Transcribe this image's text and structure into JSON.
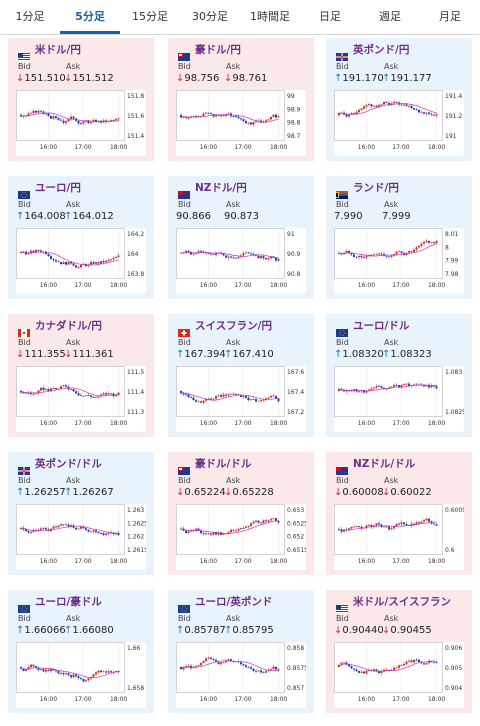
{
  "tabs": [
    {
      "label": "1分足",
      "active": false
    },
    {
      "label": "5分足",
      "active": true
    },
    {
      "label": "15分足",
      "active": false
    },
    {
      "label": "30分足",
      "active": false
    },
    {
      "label": "1時間足",
      "active": false
    },
    {
      "label": "日足",
      "active": false
    },
    {
      "label": "週足",
      "active": false
    },
    {
      "label": "月足",
      "active": false
    }
  ],
  "labels": {
    "bid": "Bid",
    "ask": "Ask"
  },
  "colors": {
    "down_bg": "#fbe9ea",
    "up_bg": "#e8f3fb",
    "title": "#6d2d8a",
    "down": "#d52b2b",
    "up": "#1f73c8",
    "bull": "#d52b2b",
    "bear": "#1f3fa8",
    "ma": "#c03ac0",
    "tab_active": "#1a5fa8"
  },
  "cards": [
    {
      "title": "米ドル/円",
      "flag": "us-flag",
      "dir": "down",
      "bid": "151.510",
      "ask": "151.512",
      "yticks": [
        "151.8",
        "151.6",
        "151.4"
      ],
      "xticks": [
        "16:00",
        "17:00",
        "18:00"
      ]
    },
    {
      "title": "豪ドル/円",
      "flag": "au-flag",
      "dir": "down",
      "bid": "98.756",
      "ask": "98.761",
      "yticks": [
        "99",
        "98.9",
        "98.8",
        "98.7"
      ],
      "xticks": [
        "16:00",
        "17:00",
        "18:00"
      ]
    },
    {
      "title": "英ポンド/円",
      "flag": "uk-flag",
      "dir": "up",
      "bid": "191.170",
      "ask": "191.177",
      "yticks": [
        "191.4",
        "191.2",
        "191"
      ],
      "xticks": [
        "16:00",
        "17:00",
        "18:00"
      ]
    },
    {
      "title": "ユーロ/円",
      "flag": "eu-flag",
      "dir": "up",
      "bid": "164.008",
      "ask": "164.012",
      "yticks": [
        "164.2",
        "164",
        "163.8"
      ],
      "xticks": [
        "16:00",
        "17:00",
        "18:00"
      ]
    },
    {
      "title": "NZドル/円",
      "flag": "nz-flag",
      "dir": "none",
      "bid": "90.866",
      "ask": "90.873",
      "yticks": [
        "91",
        "90.9",
        "90.8"
      ],
      "xticks": [
        "16:00",
        "17:00",
        "18:00"
      ]
    },
    {
      "title": "ランド/円",
      "flag": "za-flag",
      "dir": "none",
      "bid": "7.990",
      "ask": "7.999",
      "yticks": [
        "8.01",
        "8",
        "7.99",
        "7.98"
      ],
      "xticks": [
        "16:00",
        "17:00",
        "18:00"
      ]
    },
    {
      "title": "カナダドル/円",
      "flag": "ca-flag",
      "dir": "down",
      "bid": "111.355",
      "ask": "111.361",
      "yticks": [
        "111.5",
        "111.4",
        "111.3"
      ],
      "xticks": [
        "16:00",
        "17:00",
        "18:00"
      ]
    },
    {
      "title": "スイスフラン/円",
      "flag": "ch-flag",
      "dir": "up",
      "bid": "167.394",
      "ask": "167.410",
      "yticks": [
        "167.6",
        "167.4",
        "167.2"
      ],
      "xticks": [
        "16:00",
        "17:00",
        "18:00"
      ]
    },
    {
      "title": "ユーロ/ドル",
      "flag": "eu-us-flag",
      "dir": "up",
      "bid": "1.08320",
      "ask": "1.08323",
      "yticks": [
        "1.083",
        "1.0825"
      ],
      "xticks": [
        "16:00",
        "17:00",
        "18:00"
      ]
    },
    {
      "title": "英ポンド/ドル",
      "flag": "uk-us-flag",
      "dir": "up",
      "bid": "1.26257",
      "ask": "1.26267",
      "yticks": [
        "1.263",
        "1.2625",
        "1.262",
        "1.2615"
      ],
      "xticks": [
        "16:00",
        "17:00",
        "18:00"
      ]
    },
    {
      "title": "豪ドル/ドル",
      "flag": "au-us-flag",
      "dir": "down",
      "bid": "0.65224",
      "ask": "0.65228",
      "yticks": [
        "0.653",
        "0.6525",
        "0.652",
        "0.6515"
      ],
      "xticks": [
        "16:00",
        "17:00",
        "18:00"
      ]
    },
    {
      "title": "NZドル/ドル",
      "flag": "nz-us-flag",
      "dir": "down",
      "bid": "0.60008",
      "ask": "0.60022",
      "yticks": [
        "0.6005",
        "0.6"
      ],
      "xticks": [
        "16:00",
        "17:00",
        "18:00"
      ]
    },
    {
      "title": "ユーロ/豪ドル",
      "flag": "eu-au-flag",
      "dir": "up",
      "bid": "1.66066",
      "ask": "1.66080",
      "yticks": [
        "1.66",
        "1.658"
      ],
      "xticks": [
        "16:00",
        "17:00",
        "18:00"
      ]
    },
    {
      "title": "ユーロ/英ポンド",
      "flag": "eu-uk-flag",
      "dir": "up",
      "bid": "0.85787",
      "ask": "0.85795",
      "yticks": [
        "0.858",
        "0.8575",
        "0.857"
      ],
      "xticks": [
        "16:00",
        "17:00",
        "18:00"
      ]
    },
    {
      "title": "米ドル/スイスフラン",
      "flag": "us-ch-flag",
      "dir": "down",
      "bid": "0.90440",
      "ask": "0.90455",
      "yticks": [
        "0.906",
        "0.905",
        "0.904"
      ],
      "xticks": [
        "16:00",
        "17:00",
        "18:00"
      ]
    }
  ]
}
